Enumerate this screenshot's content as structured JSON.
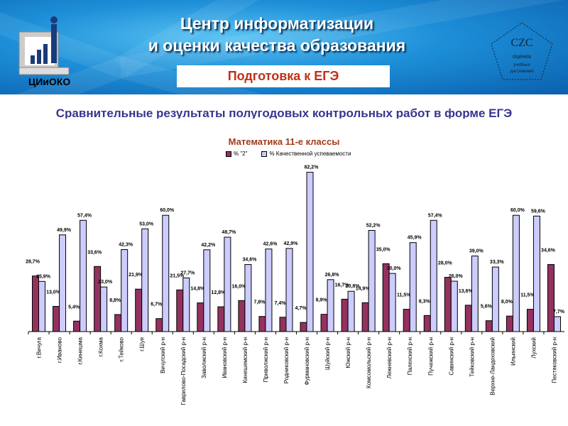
{
  "header": {
    "title_line1": "Центр информатизации",
    "title_line2": "и оценки качества образования",
    "banner": "Подготовка к ЕГЭ",
    "logo_text": "ЦИиОКО",
    "seal_text": "оценка учебных достижений"
  },
  "subtitle": "Сравнительные результаты полугодовых контрольных работ в форме ЕГЭ",
  "colors": {
    "series1": "#93325e",
    "series2": "#ccccff"
  },
  "chart_data": {
    "type": "bar",
    "title": "Математика 11-е классы",
    "legend_position": "top",
    "ylim": [
      0,
      100
    ],
    "categories": [
      "г.Вичуга",
      "г.Иваново",
      "г.Кинешма",
      "г.Кохма",
      "г.Тейково",
      "г.Шуя",
      "Вичугский р-н",
      "Гаврилово-Посадский р-н",
      "Заволжский р-н",
      "Ивановский р-н",
      "Кинешемский р-н",
      "Приволжский р-н",
      "Родниковский р-н",
      "Фурмановский р-н",
      "Шуйский р-н",
      "Южский р-н",
      "Комсомольский р-н",
      "Лежневский р-н",
      "Палехский р-н",
      "Пучежский р-н",
      "Савинский р-н",
      "Тейковский р-н",
      "Верхне-Ландеховский",
      "Ильинский",
      "Лухский",
      "Пестяковский р-н"
    ],
    "series": [
      {
        "name": "% \"2\"",
        "values": [
          28.7,
          13.0,
          5.4,
          33.6,
          8.8,
          21.9,
          6.7,
          21.5,
          14.8,
          12.8,
          16.0,
          7.8,
          7.4,
          4.7,
          8.9,
          16.7,
          14.9,
          35.0,
          11.5,
          8.3,
          28.0,
          13.6,
          5.6,
          8.0,
          11.5,
          34.6
        ]
      },
      {
        "name": "% Качественной успеваемости",
        "values": [
          25.9,
          49.9,
          57.4,
          23.0,
          42.3,
          53.0,
          60.0,
          27.7,
          42.2,
          48.7,
          34.6,
          42.6,
          42.9,
          82.2,
          26.8,
          20.8,
          52.2,
          30.0,
          45.9,
          57.4,
          26.0,
          39.0,
          33.3,
          60.0,
          59.6,
          7.7
        ]
      }
    ]
  }
}
